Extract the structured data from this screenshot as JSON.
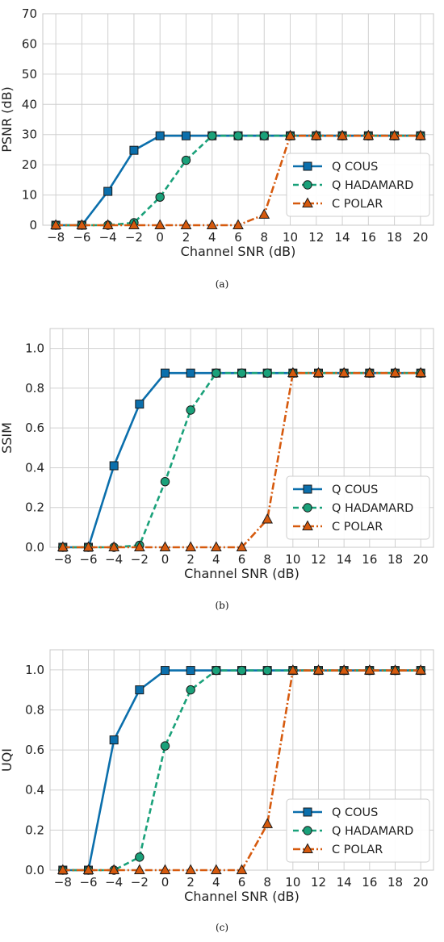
{
  "chart_data": [
    {
      "type": "line",
      "caption": "(a)",
      "xlabel": "Channel SNR (dB)",
      "ylabel": "PSNR (dB)",
      "ylim": [
        0,
        70
      ],
      "xlim": [
        -9,
        21
      ],
      "y_ticks": [
        "0",
        "10",
        "20",
        "30",
        "40",
        "50",
        "60",
        "70"
      ],
      "y_tick_values": [
        0,
        10,
        20,
        30,
        40,
        50,
        60,
        70
      ],
      "x": [
        -8,
        -6,
        -4,
        -2,
        0,
        2,
        4,
        6,
        8,
        10,
        12,
        14,
        16,
        18,
        20
      ],
      "x_ticks": [
        "−8",
        "−6",
        "−4",
        "−2",
        "0",
        "2",
        "4",
        "6",
        "8",
        "10",
        "12",
        "14",
        "16",
        "18",
        "20"
      ],
      "grid": true,
      "legend_position": "right",
      "series": [
        {
          "name": "Q COUS",
          "color": "#0b6fac",
          "marker": "square",
          "dash": "solid",
          "values": [
            0,
            0,
            11.2,
            24.8,
            29.6,
            29.6,
            29.6,
            29.6,
            29.6,
            29.6,
            29.6,
            29.6,
            29.6,
            29.6,
            29.6
          ]
        },
        {
          "name": "Q HADAMARD",
          "color": "#1aa17a",
          "marker": "circle",
          "dash": "dashed",
          "values": [
            0,
            0,
            0,
            0.8,
            9.3,
            21.5,
            29.6,
            29.6,
            29.6,
            29.6,
            29.6,
            29.6,
            29.6,
            29.6,
            29.6
          ]
        },
        {
          "name": "C POLAR",
          "color": "#d65a0e",
          "marker": "triangle",
          "dash": "dashdot",
          "values": [
            0,
            0,
            0,
            0,
            0,
            0,
            0,
            0,
            3.5,
            29.6,
            29.6,
            29.6,
            29.6,
            29.6,
            29.6
          ]
        }
      ]
    },
    {
      "type": "line",
      "caption": "(b)",
      "xlabel": "Channel SNR (dB)",
      "ylabel": "SSIM",
      "ylim": [
        0,
        1.1
      ],
      "xlim": [
        -9,
        21
      ],
      "y_ticks": [
        "0.0",
        "0.2",
        "0.4",
        "0.6",
        "0.8",
        "1.0"
      ],
      "y_tick_values": [
        0,
        0.2,
        0.4,
        0.6,
        0.8,
        1.0
      ],
      "x": [
        -8,
        -6,
        -4,
        -2,
        0,
        2,
        4,
        6,
        8,
        10,
        12,
        14,
        16,
        18,
        20
      ],
      "x_ticks": [
        "−8",
        "−6",
        "−4",
        "−2",
        "0",
        "2",
        "4",
        "6",
        "8",
        "10",
        "12",
        "14",
        "16",
        "18",
        "20"
      ],
      "grid": true,
      "legend_position": "lower right",
      "series": [
        {
          "name": "Q COUS",
          "color": "#0b6fac",
          "marker": "square",
          "dash": "solid",
          "values": [
            0,
            0,
            0.41,
            0.72,
            0.876,
            0.876,
            0.876,
            0.876,
            0.876,
            0.876,
            0.876,
            0.876,
            0.876,
            0.876,
            0.876
          ]
        },
        {
          "name": "Q HADAMARD",
          "color": "#1aa17a",
          "marker": "circle",
          "dash": "dashed",
          "values": [
            0,
            0,
            0,
            0.01,
            0.33,
            0.69,
            0.876,
            0.876,
            0.876,
            0.876,
            0.876,
            0.876,
            0.876,
            0.876,
            0.876
          ]
        },
        {
          "name": "C POLAR",
          "color": "#d65a0e",
          "marker": "triangle",
          "dash": "dashdot",
          "values": [
            0,
            0,
            0,
            0,
            0,
            0,
            0,
            0,
            0.14,
            0.876,
            0.876,
            0.876,
            0.876,
            0.876,
            0.876
          ]
        }
      ]
    },
    {
      "type": "line",
      "caption": "(c)",
      "xlabel": "Channel SNR (dB)",
      "ylabel": "UQI",
      "ylim": [
        0,
        1.1
      ],
      "xlim": [
        -9,
        21
      ],
      "y_ticks": [
        "0.0",
        "0.2",
        "0.4",
        "0.6",
        "0.8",
        "1.0"
      ],
      "y_tick_values": [
        0,
        0.2,
        0.4,
        0.6,
        0.8,
        1.0
      ],
      "x": [
        -8,
        -6,
        -4,
        -2,
        0,
        2,
        4,
        6,
        8,
        10,
        12,
        14,
        16,
        18,
        20
      ],
      "x_ticks": [
        "−8",
        "−6",
        "−4",
        "−2",
        "0",
        "2",
        "4",
        "6",
        "8",
        "10",
        "12",
        "14",
        "16",
        "18",
        "20"
      ],
      "grid": true,
      "legend_position": "lower right",
      "series": [
        {
          "name": "Q COUS",
          "color": "#0b6fac",
          "marker": "square",
          "dash": "solid",
          "values": [
            0,
            0,
            0.65,
            0.9,
            0.997,
            0.997,
            0.997,
            0.997,
            0.997,
            0.997,
            0.997,
            0.997,
            0.997,
            0.997,
            0.997
          ]
        },
        {
          "name": "Q HADAMARD",
          "color": "#1aa17a",
          "marker": "circle",
          "dash": "dashed",
          "values": [
            0,
            0,
            0,
            0.065,
            0.62,
            0.9,
            0.997,
            0.997,
            0.997,
            0.997,
            0.997,
            0.997,
            0.997,
            0.997,
            0.997
          ]
        },
        {
          "name": "C POLAR",
          "color": "#d65a0e",
          "marker": "triangle",
          "dash": "dashdot",
          "values": [
            0,
            0,
            0,
            0,
            0,
            0,
            0,
            0,
            0.23,
            0.997,
            0.997,
            0.997,
            0.997,
            0.997,
            0.997
          ]
        }
      ]
    }
  ]
}
